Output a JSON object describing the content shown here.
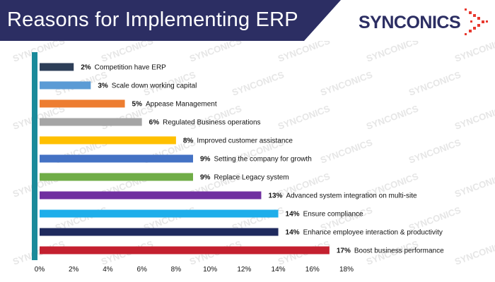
{
  "header": {
    "title": "Reasons for Implementing ERP",
    "band_color": "#2c2e63"
  },
  "logo": {
    "text": "SYNCONICS",
    "text_color": "#2c2e63",
    "accent_color": "#e8392f",
    "icon": "dot-grid-arrow-icon"
  },
  "watermark": {
    "text": "SYNCONICS"
  },
  "chart_data": {
    "type": "bar",
    "orientation": "horizontal",
    "title": "Reasons for Implementing ERP",
    "xlim": [
      0,
      18
    ],
    "x_ticks": [
      "0%",
      "2%",
      "4%",
      "6%",
      "8%",
      "10%",
      "12%",
      "14%",
      "16%",
      "18%"
    ],
    "grid": false,
    "legend": "none",
    "categories": [
      "Competition have ERP",
      "Scale down working capital",
      "Appease Management",
      "Regulated Business operations",
      "Improved customer assistance",
      "Setting the company for growth",
      "Replace Legacy system",
      "Advanced system integration on multi-site",
      "Ensure compliance",
      "Enhance employee interaction & productivity",
      "Boost business performance"
    ],
    "values": [
      2,
      3,
      5,
      6,
      8,
      9,
      9,
      13,
      14,
      14,
      17
    ],
    "value_labels": [
      "2%",
      "3%",
      "5%",
      "6%",
      "8%",
      "9%",
      "9%",
      "13%",
      "14%",
      "14%",
      "17%"
    ],
    "colors": [
      "#2d3e58",
      "#5b9bd5",
      "#ed7d31",
      "#a5a5a5",
      "#ffc000",
      "#4472c4",
      "#70ad47",
      "#7030a0",
      "#1eaeea",
      "#1f2a5e",
      "#c4202f"
    ],
    "axis_line_color": "#1a8a9a"
  }
}
